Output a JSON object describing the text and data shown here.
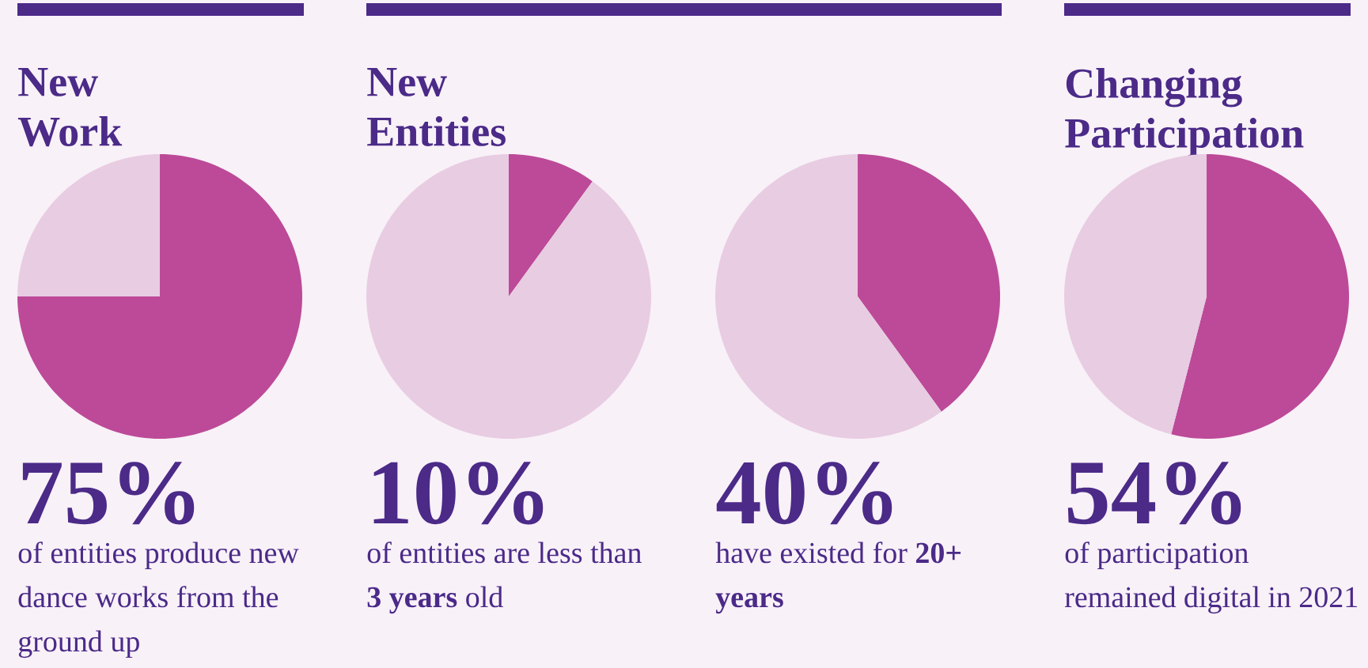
{
  "chart_data": [
    {
      "type": "pie",
      "title": "New Work",
      "categories": [
        null,
        null
      ],
      "values": [
        75,
        25
      ],
      "colors": [
        "#bc4a98",
        "#e8cce2"
      ],
      "annotations": [
        "75%",
        "of entities produce new dance works from the ground up"
      ]
    },
    {
      "type": "pie",
      "title": "New Entities",
      "categories": [
        null,
        null
      ],
      "values": [
        10,
        90
      ],
      "colors": [
        "#bc4a98",
        "#e8cce2"
      ],
      "annotations": [
        "10%",
        "of entities are less than **3 years** old"
      ]
    },
    {
      "type": "pie",
      "categories": [
        null,
        null
      ],
      "values": [
        40,
        60
      ],
      "colors": [
        "#bc4a98",
        "#e8cce2"
      ],
      "annotations": [
        "40%",
        "have existed for **20+ years**"
      ]
    },
    {
      "type": "pie",
      "title": "Changing Participation",
      "categories": [
        null,
        null
      ],
      "values": [
        54,
        46
      ],
      "colors": [
        "#bc4a98",
        "#e8cce2"
      ],
      "annotations": [
        "54%",
        "of participation remained digital in 2021"
      ]
    }
  ]
}
